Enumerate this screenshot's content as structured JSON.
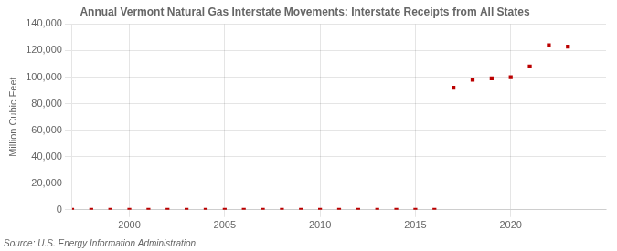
{
  "chart_data": {
    "type": "scatter",
    "title": "Annual Vermont Natural Gas Interstate Movements: Interstate Receipts from All States",
    "ylabel": "Million Cubic Feet",
    "source": "Source: U.S. Energy Information Administration",
    "x": [
      1997,
      1998,
      1999,
      2000,
      2001,
      2002,
      2003,
      2004,
      2005,
      2006,
      2007,
      2008,
      2009,
      2010,
      2011,
      2012,
      2013,
      2014,
      2015,
      2016,
      2017,
      2018,
      2019,
      2020,
      2021,
      2022,
      2023
    ],
    "values": [
      10,
      10,
      10,
      10,
      10,
      10,
      10,
      10,
      10,
      10,
      10,
      10,
      10,
      10,
      10,
      10,
      10,
      10,
      10,
      10,
      92000,
      98000,
      99000,
      100000,
      108000,
      124000,
      123000
    ],
    "color": "#bb0000",
    "marker": "square",
    "xlim": [
      1997,
      2025
    ],
    "xticks": [
      2000,
      2005,
      2010,
      2015,
      2020
    ],
    "ylim": [
      0,
      140000
    ],
    "yticks": [
      0,
      {
        "value": 20000,
        "label": "20,000"
      },
      {
        "value": 40000,
        "label": "40,000"
      },
      {
        "value": 60000,
        "label": "60,000"
      },
      {
        "value": 80000,
        "label": "80,000"
      },
      {
        "value": 100000,
        "label": "100,000"
      },
      {
        "value": 120000,
        "label": "120,000"
      },
      {
        "value": 140000,
        "label": "140,000"
      }
    ],
    "grid": true
  }
}
